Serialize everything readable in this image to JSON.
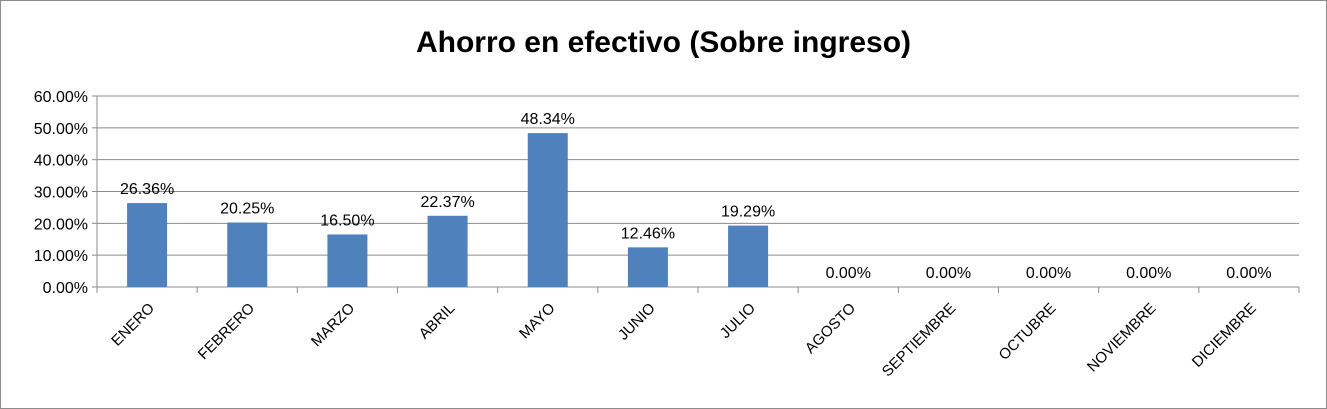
{
  "chart_data": {
    "type": "bar",
    "title": "Ahorro en efectivo (Sobre ingreso)",
    "categories": [
      "ENERO",
      "FEBRERO",
      "MARZO",
      "ABRIL",
      "MAYO",
      "JUNIO",
      "JULIO",
      "AGOSTO",
      "SEPTIEMBRE",
      "OCTUBRE",
      "NOVIEMBRE",
      "DICIEMBRE"
    ],
    "values": [
      26.36,
      20.25,
      16.5,
      22.37,
      48.34,
      12.46,
      19.29,
      0,
      0,
      0,
      0,
      0
    ],
    "data_labels": [
      "26.36%",
      "20.25%",
      "16.50%",
      "22.37%",
      "48.34%",
      "12.46%",
      "19.29%",
      "0.00%",
      "0.00%",
      "0.00%",
      "0.00%",
      "0.00%"
    ],
    "yticks": [
      0,
      10,
      20,
      30,
      40,
      50,
      60
    ],
    "ytick_labels": [
      "0.00%",
      "10.00%",
      "20.00%",
      "30.00%",
      "40.00%",
      "50.00%",
      "60.00%"
    ],
    "ylim": [
      0,
      60
    ],
    "grid": true,
    "legend": "none",
    "bar_color": "#4f81bd"
  }
}
